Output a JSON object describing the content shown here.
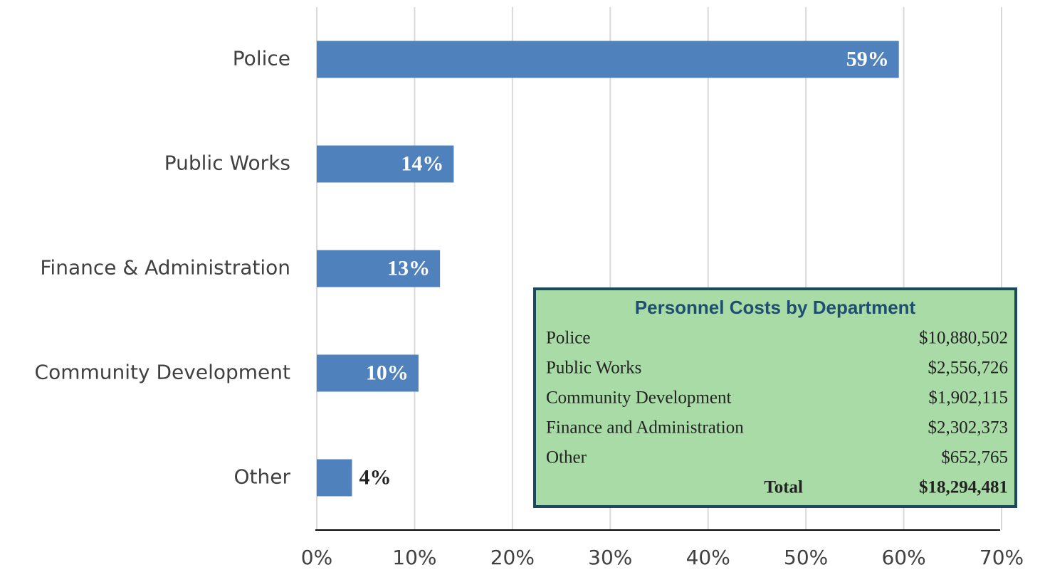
{
  "chart_data": {
    "type": "barh",
    "categories": [
      "Police",
      "Public Works",
      "Finance & Administration",
      "Community Development",
      "Other"
    ],
    "values": [
      59.5,
      14.0,
      12.6,
      10.4,
      3.6
    ],
    "value_labels": [
      "59%",
      "14%",
      "13%",
      "10%",
      "4%"
    ],
    "color": "#4f81bd",
    "xlim": [
      0,
      70
    ],
    "xticks": [
      {
        "value": 0,
        "label": "0%"
      },
      {
        "value": 10,
        "label": "10%"
      },
      {
        "value": 20,
        "label": "20%"
      },
      {
        "value": 30,
        "label": "30%"
      },
      {
        "value": 40,
        "label": "40%"
      },
      {
        "value": 50,
        "label": "50%"
      },
      {
        "value": 60,
        "label": "60%"
      },
      {
        "value": 70,
        "label": "70%"
      }
    ],
    "grid": true
  },
  "table": {
    "title": "Personnel Costs by Department",
    "rows": [
      [
        "Police",
        "$10,880,502"
      ],
      [
        "Public Works",
        "$2,556,726"
      ],
      [
        "Community Development",
        "$1,902,115"
      ],
      [
        "Finance and Administration",
        "$2,302,373"
      ],
      [
        "Other",
        "$652,765"
      ]
    ],
    "total": [
      "Total",
      "$18,294,481"
    ]
  }
}
